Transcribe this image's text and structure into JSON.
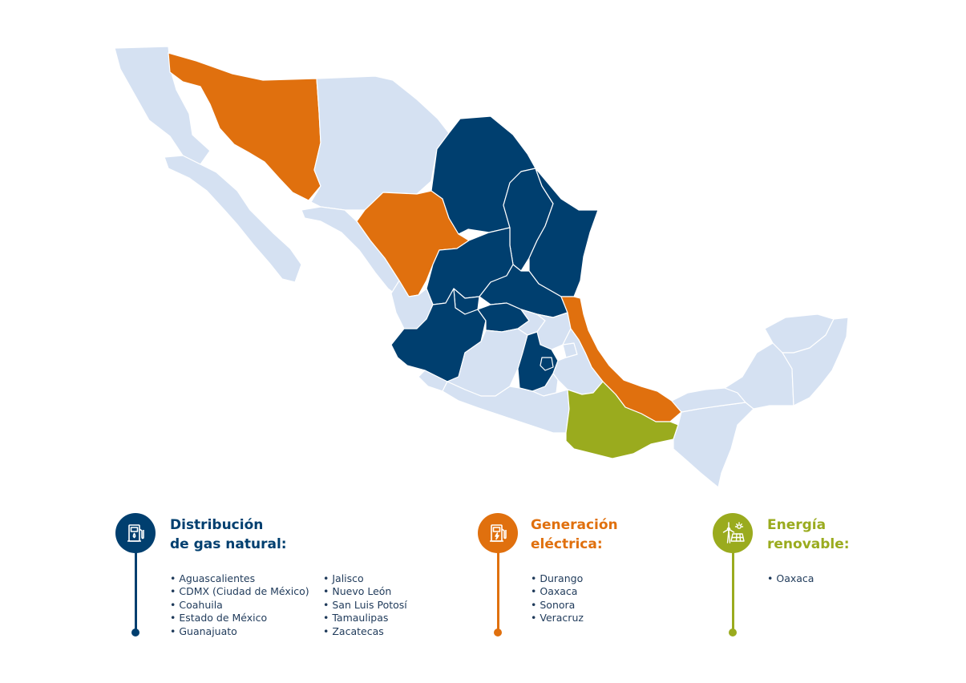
{
  "colors": {
    "background": "#ffffff",
    "base_state": "#d5e1f2",
    "border": "#ffffff",
    "gas_distribution": "#003f6f",
    "power_generation": "#e0700e",
    "renewable_energy": "#9aab1e"
  },
  "legend": {
    "gas": {
      "title_line1": "Distribución",
      "title_line2": "de gas natural:",
      "icon": "gas-pump-icon",
      "states_col1": [
        "Aguascalientes",
        "CDMX (Ciudad de México)",
        "Coahuila",
        "Estado de México",
        "Guanajuato"
      ],
      "states_col2": [
        "Jalisco",
        "Nuevo León",
        "San Luis Potosí",
        "Tamaulipas",
        "Zacatecas"
      ]
    },
    "power": {
      "title_line1": "Generación",
      "title_line2": "eléctrica:",
      "icon": "power-pump-icon",
      "states": [
        "Durango",
        "Oaxaca",
        "Sonora",
        "Veracruz"
      ]
    },
    "renewable": {
      "title_line1": "Energía",
      "title_line2": "renovable:",
      "icon": "wind-solar-icon",
      "states": [
        "Oaxaca"
      ]
    }
  }
}
